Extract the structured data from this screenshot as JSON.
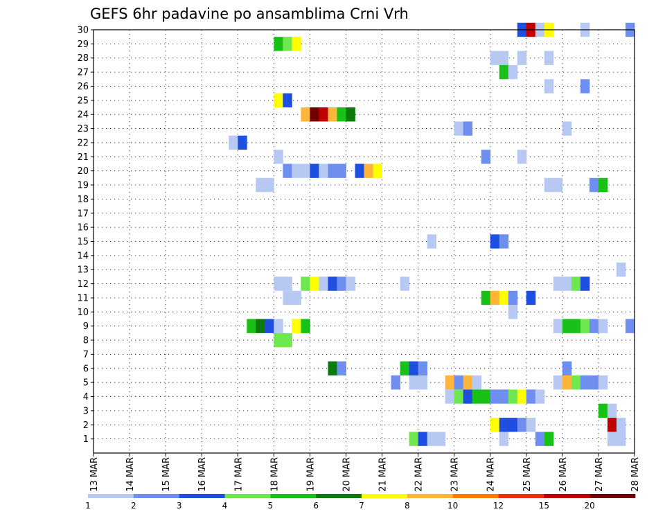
{
  "chart_data": {
    "type": "heatmap",
    "title": "GEFS 6hr padavine po ansamblima Crni Vrh",
    "xlabel": "",
    "ylabel": "",
    "x_tick_labels": [
      "13 MAR",
      "14 MAR",
      "15 MAR",
      "16 MAR",
      "17 MAR",
      "18 MAR",
      "19 MAR",
      "20 MAR",
      "21 MAR",
      "22 MAR",
      "23 MAR",
      "24 MAR",
      "25 MAR",
      "26 MAR",
      "27 MAR",
      "28 MAR"
    ],
    "x_range_days": [
      13,
      28
    ],
    "y_range_members": [
      0,
      30
    ],
    "y_tick_labels": [
      1,
      2,
      3,
      4,
      5,
      6,
      7,
      8,
      9,
      10,
      11,
      12,
      13,
      14,
      15,
      16,
      17,
      18,
      19,
      20,
      21,
      22,
      23,
      24,
      25,
      26,
      27,
      28,
      29,
      30
    ],
    "grid": true,
    "colorbar": {
      "labels": [
        "1",
        "2",
        "3",
        "4",
        "5",
        "6",
        "7",
        "8",
        "10",
        "12",
        "15",
        "20"
      ],
      "colors": [
        "#b7c8f3",
        "#6f8ff0",
        "#1f4fe0",
        "#6fe84f",
        "#18c018",
        "#0c7a0c",
        "#ffff00",
        "#ffb43a",
        "#ff7a00",
        "#e83010",
        "#c00000",
        "#700000"
      ]
    },
    "color_key": {
      "a": "#b7c8f3",
      "b": "#6f8ff0",
      "c": "#1f4fe0",
      "d": "#6fe84f",
      "e": "#18c018",
      "f": "#0c7a0c",
      "g": "#ffff00",
      "h": "#ffb43a",
      "i": "#ff7a00",
      "k": "#c00000",
      "l": "#700000"
    },
    "runs": [
      {
        "member": 30,
        "start_day": 24.75,
        "colors": "ckag"
      },
      {
        "member": 30,
        "start_day": 26.5,
        "colors": "a"
      },
      {
        "member": 30,
        "start_day": 27.75,
        "colors": "b"
      },
      {
        "member": 29,
        "start_day": 18.0,
        "colors": "edg"
      },
      {
        "member": 28,
        "start_day": 24.0,
        "colors": "aa"
      },
      {
        "member": 28,
        "start_day": 24.75,
        "colors": "a"
      },
      {
        "member": 28,
        "start_day": 25.5,
        "colors": "a"
      },
      {
        "member": 27,
        "start_day": 24.25,
        "colors": "ea"
      },
      {
        "member": 26,
        "start_day": 25.5,
        "colors": "a"
      },
      {
        "member": 26,
        "start_day": 26.5,
        "colors": "b"
      },
      {
        "member": 25,
        "start_day": 18.0,
        "colors": "gc"
      },
      {
        "member": 24,
        "start_day": 18.75,
        "colors": "hlkhef"
      },
      {
        "member": 23,
        "start_day": 23.0,
        "colors": "ab"
      },
      {
        "member": 23,
        "start_day": 26.0,
        "colors": "a"
      },
      {
        "member": 22,
        "start_day": 16.75,
        "colors": "ac"
      },
      {
        "member": 21,
        "start_day": 18.0,
        "colors": "a"
      },
      {
        "member": 21,
        "start_day": 23.75,
        "colors": "b"
      },
      {
        "member": 21,
        "start_day": 24.75,
        "colors": "a"
      },
      {
        "member": 20,
        "start_day": 18.25,
        "colors": "baacabb"
      },
      {
        "member": 20,
        "start_day": 20.25,
        "colors": "chg"
      },
      {
        "member": 19,
        "start_day": 17.5,
        "colors": "aa"
      },
      {
        "member": 19,
        "start_day": 25.5,
        "colors": "aa"
      },
      {
        "member": 19,
        "start_day": 26.75,
        "colors": "be"
      },
      {
        "member": 15,
        "start_day": 22.25,
        "colors": "a"
      },
      {
        "member": 15,
        "start_day": 24.0,
        "colors": "cb"
      },
      {
        "member": 13,
        "start_day": 27.5,
        "colors": "a"
      },
      {
        "member": 12,
        "start_day": 18.0,
        "colors": "aa"
      },
      {
        "member": 12,
        "start_day": 18.75,
        "colors": "dgacba"
      },
      {
        "member": 12,
        "start_day": 21.5,
        "colors": "a"
      },
      {
        "member": 12,
        "start_day": 25.75,
        "colors": "aadc"
      },
      {
        "member": 11,
        "start_day": 18.25,
        "colors": "aa"
      },
      {
        "member": 11,
        "start_day": 23.75,
        "colors": "ehgb"
      },
      {
        "member": 11,
        "start_day": 25.0,
        "colors": "c"
      },
      {
        "member": 10,
        "start_day": 24.5,
        "colors": "a"
      },
      {
        "member": 9,
        "start_day": 17.25,
        "colors": "efca"
      },
      {
        "member": 9,
        "start_day": 18.5,
        "colors": "ge"
      },
      {
        "member": 9,
        "start_day": 25.75,
        "colors": "aeedba"
      },
      {
        "member": 9,
        "start_day": 27.75,
        "colors": "b"
      },
      {
        "member": 8,
        "start_day": 18.0,
        "colors": "dd"
      },
      {
        "member": 6,
        "start_day": 19.5,
        "colors": "fb"
      },
      {
        "member": 6,
        "start_day": 21.5,
        "colors": "ecb"
      },
      {
        "member": 6,
        "start_day": 26.0,
        "colors": "b"
      },
      {
        "member": 5,
        "start_day": 21.25,
        "colors": "b"
      },
      {
        "member": 5,
        "start_day": 21.75,
        "colors": "aa"
      },
      {
        "member": 5,
        "start_day": 22.75,
        "colors": "hbha"
      },
      {
        "member": 5,
        "start_day": 25.75,
        "colors": "ahdbba"
      },
      {
        "member": 4,
        "start_day": 22.75,
        "colors": "adceebbdgba"
      },
      {
        "member": 3,
        "start_day": 27.0,
        "colors": "ea"
      },
      {
        "member": 2,
        "start_day": 24.0,
        "colors": "gccba"
      },
      {
        "member": 2,
        "start_day": 27.25,
        "colors": "ka"
      },
      {
        "member": 1,
        "start_day": 21.75,
        "colors": "dcaa"
      },
      {
        "member": 1,
        "start_day": 24.25,
        "colors": "a"
      },
      {
        "member": 1,
        "start_day": 25.25,
        "colors": "be"
      },
      {
        "member": 1,
        "start_day": 27.25,
        "colors": "aa"
      }
    ]
  }
}
